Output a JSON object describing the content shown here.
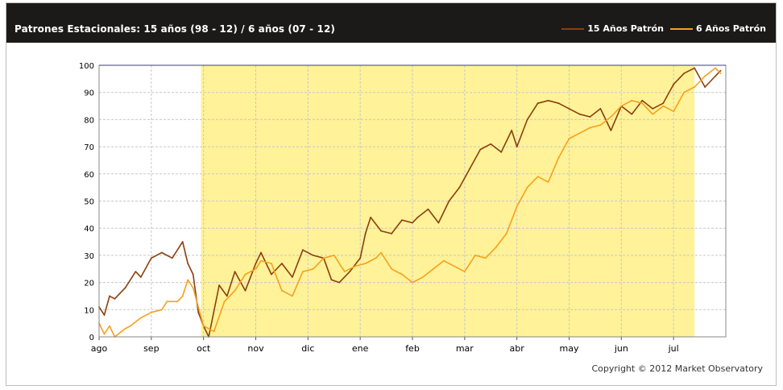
{
  "header": {
    "title": "Patrones Estacionales: 15 años (98 - 12) / 6 años (07 - 12)"
  },
  "legend": [
    {
      "label": "15 Años Patrón",
      "color": "#8a3f0d"
    },
    {
      "label": "6 Años Patrón",
      "color": "#f6a11a"
    }
  ],
  "footer": {
    "copyright": "Copyright © 2012 Market Observatory"
  },
  "chart_data": {
    "type": "line",
    "title": "Patrones Estacionales: 15 años (98 - 12) / 6 años (07 - 12)",
    "xlabel": "",
    "ylabel": "",
    "x_domain": [
      0,
      12
    ],
    "ylim": [
      0,
      100
    ],
    "yticks": [
      0,
      10,
      20,
      30,
      40,
      50,
      60,
      70,
      80,
      90,
      100
    ],
    "month_labels": [
      "ago",
      "sep",
      "oct",
      "nov",
      "dic",
      "ene",
      "feb",
      "mar",
      "abr",
      "may",
      "jun",
      "jul"
    ],
    "month_positions": [
      0,
      1,
      2,
      3,
      4,
      5,
      6,
      7,
      8,
      9,
      10,
      11
    ],
    "grid": true,
    "legend_position": "top-right",
    "highlight_band": {
      "x0": 1.95,
      "x1": 11.4,
      "color": "#fff299"
    },
    "series": [
      {
        "name": "15 Años Patrón",
        "color": "#8a3f0d",
        "x": [
          0,
          0.1,
          0.2,
          0.3,
          0.5,
          0.7,
          0.8,
          1.0,
          1.2,
          1.4,
          1.6,
          1.7,
          1.8,
          1.9,
          2.0,
          2.1,
          2.3,
          2.45,
          2.6,
          2.8,
          3.0,
          3.1,
          3.3,
          3.5,
          3.7,
          3.9,
          4.1,
          4.3,
          4.45,
          4.6,
          4.8,
          5.0,
          5.1,
          5.2,
          5.4,
          5.6,
          5.8,
          6.0,
          6.1,
          6.3,
          6.5,
          6.7,
          6.9,
          7.1,
          7.3,
          7.5,
          7.7,
          7.9,
          8.0,
          8.2,
          8.4,
          8.6,
          8.8,
          9.0,
          9.2,
          9.4,
          9.6,
          9.8,
          10.0,
          10.2,
          10.4,
          10.6,
          10.8,
          11.0,
          11.2,
          11.4,
          11.6,
          11.8,
          11.9
        ],
        "values": [
          11,
          8,
          15,
          14,
          18,
          24,
          22,
          29,
          31,
          29,
          35,
          27,
          23,
          9,
          4,
          0,
          19,
          15,
          24,
          17,
          27,
          31,
          23,
          27,
          22,
          32,
          30,
          29,
          21,
          20,
          24,
          29,
          38,
          44,
          39,
          38,
          43,
          42,
          44,
          47,
          42,
          50,
          55,
          62,
          69,
          71,
          68,
          76,
          70,
          80,
          86,
          87,
          86,
          84,
          82,
          81,
          84,
          76,
          85,
          82,
          87,
          84,
          86,
          93,
          97,
          99,
          92,
          96,
          98
        ]
      },
      {
        "name": "6 Años Patrón",
        "color": "#f6a11a",
        "x": [
          0,
          0.1,
          0.2,
          0.3,
          0.5,
          0.6,
          0.8,
          1.0,
          1.2,
          1.3,
          1.5,
          1.6,
          1.7,
          1.8,
          1.9,
          2.0,
          2.2,
          2.4,
          2.6,
          2.8,
          3.0,
          3.1,
          3.3,
          3.5,
          3.7,
          3.9,
          4.1,
          4.3,
          4.5,
          4.7,
          4.9,
          5.1,
          5.3,
          5.4,
          5.6,
          5.8,
          6.0,
          6.2,
          6.4,
          6.6,
          6.8,
          7.0,
          7.2,
          7.4,
          7.6,
          7.8,
          8.0,
          8.2,
          8.4,
          8.6,
          8.8,
          9.0,
          9.2,
          9.4,
          9.6,
          9.8,
          10.0,
          10.2,
          10.4,
          10.6,
          10.8,
          11.0,
          11.2,
          11.4,
          11.6,
          11.8,
          11.9
        ],
        "values": [
          5,
          1,
          4,
          0,
          3,
          4,
          7,
          9,
          10,
          13,
          13,
          15,
          21,
          18,
          11,
          4,
          2,
          13,
          17,
          23,
          25,
          28,
          27,
          17,
          15,
          24,
          25,
          29,
          30,
          24,
          26,
          27,
          29,
          31,
          25,
          23,
          20,
          22,
          25,
          28,
          26,
          24,
          30,
          29,
          33,
          38,
          48,
          55,
          59,
          57,
          66,
          73,
          75,
          77,
          78,
          81,
          85,
          87,
          86,
          82,
          85,
          83,
          90,
          92,
          96,
          99,
          97
        ]
      }
    ]
  }
}
